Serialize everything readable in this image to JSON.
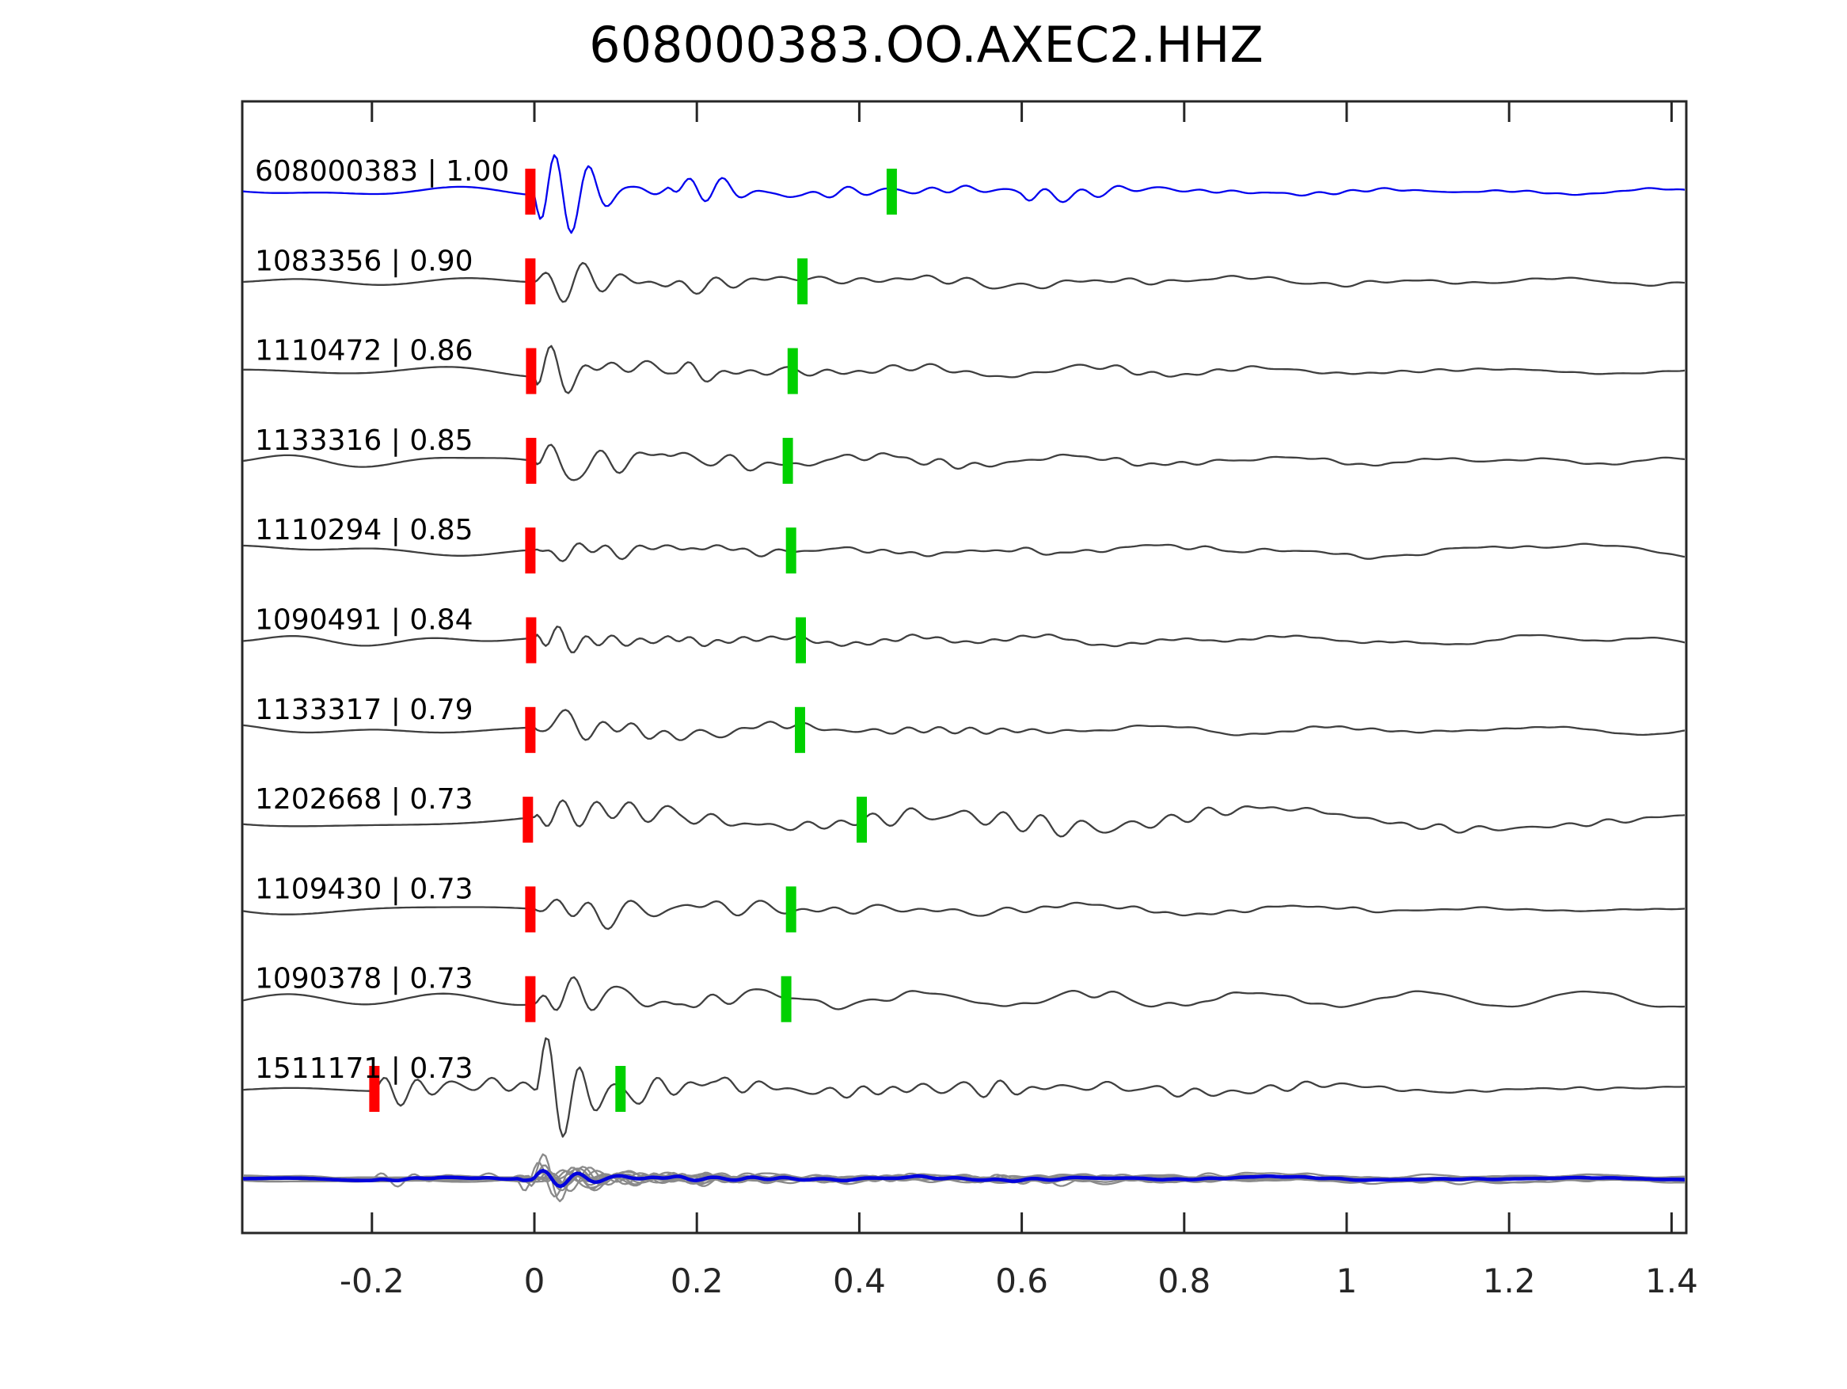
{
  "title": "608000383.OO.AXEC2.HHZ",
  "colors": {
    "background": "#ffffff",
    "template_trace": "#0202ee",
    "detection_trace": "#3f3f3f",
    "stack_member_gray": "#8a8a8a",
    "stack_blue": "#0202dd",
    "pick_red": "#ff0000",
    "pick_green": "#00d000",
    "axis": "#262626",
    "text": "#000000"
  },
  "axis": {
    "xmin": -0.3606,
    "xmax": 1.4176,
    "ticks": [
      {
        "v": -0.2,
        "label": "-0.2"
      },
      {
        "v": 0,
        "label": "0"
      },
      {
        "v": 0.2,
        "label": "0.2"
      },
      {
        "v": 0.4,
        "label": "0.4"
      },
      {
        "v": 0.6,
        "label": "0.6"
      },
      {
        "v": 0.8,
        "label": "0.8"
      },
      {
        "v": 1,
        "label": "1"
      },
      {
        "v": 1.2,
        "label": "1.2"
      },
      {
        "v": 1.4,
        "label": "1.4"
      }
    ]
  },
  "chart_data": {
    "type": "line",
    "title": "608000383.OO.AXEC2.HHZ",
    "xlabel": "",
    "ylabel": "",
    "x_units": "seconds relative to alignment (pick at 0)",
    "xlim": [
      -0.3606,
      1.4176
    ],
    "xticks": [
      -0.2,
      0,
      0.2,
      0.4,
      0.6,
      0.8,
      1,
      1.2,
      1.4
    ],
    "legend": "none",
    "grid": false,
    "description": "Waveform similarity plot: template event 608000383 (blue, top) and 10 detected events (dark gray), each labelled 'event_id | correlation'. Red bars mark the aligned pick near t=0 (event 1511171 picked at -0.20); green bars mark a secondary pick. Bottom row overlays all traces (gray) with the stacked trace in blue.",
    "traces": [
      {
        "id": "608000383",
        "correlation": "1.00",
        "label": "608000383 | 1.00",
        "role": "template",
        "red_pick": -0.005,
        "green_pick": 0.44,
        "noise": 2.2,
        "seed": 11,
        "bursts": [
          {
            "t0": 0,
            "amp": 125,
            "tau": 0.07
          },
          {
            "t0": 0.165,
            "amp": 50,
            "tau": 0.09,
            "attack": 0.025
          },
          {
            "t0": 0.32,
            "amp": 14,
            "tau": 0.5,
            "attack": 0.06
          },
          {
            "t0": 0.6,
            "amp": 16,
            "tau": 0.05,
            "attack": 0.012
          }
        ]
      },
      {
        "id": "1083356",
        "correlation": "0.90",
        "label": "1083356 | 0.90",
        "role": "detection",
        "red_pick": -0.005,
        "green_pick": 0.33,
        "noise": 3,
        "seed": 22,
        "bursts": [
          {
            "t0": 0,
            "amp": 118,
            "tau": 0.075
          },
          {
            "t0": 0.16,
            "amp": 46,
            "tau": 0.1,
            "attack": 0.03
          },
          {
            "t0": 0.3,
            "amp": 15,
            "tau": 0.5,
            "attack": 0.06
          }
        ]
      },
      {
        "id": "1110472",
        "correlation": "0.86",
        "label": "1110472 | 0.86",
        "role": "detection",
        "red_pick": -0.004,
        "green_pick": 0.318,
        "noise": 3,
        "seed": 33,
        "bursts": [
          {
            "t0": 0,
            "amp": 112,
            "tau": 0.07
          },
          {
            "t0": 0.17,
            "amp": 42,
            "tau": 0.09,
            "attack": 0.03
          },
          {
            "t0": 0.3,
            "amp": 13,
            "tau": 0.45,
            "attack": 0.06
          }
        ]
      },
      {
        "id": "1133316",
        "correlation": "0.85",
        "label": "1133316 | 0.85",
        "role": "detection",
        "red_pick": -0.004,
        "green_pick": 0.312,
        "noise": 3.5,
        "seed": 44,
        "bursts": [
          {
            "t0": 0,
            "amp": 105,
            "tau": 0.065
          },
          {
            "t0": 0.16,
            "amp": 40,
            "tau": 0.08,
            "attack": 0.025
          },
          {
            "t0": 0.3,
            "amp": 13,
            "tau": 0.5,
            "attack": 0.06
          }
        ]
      },
      {
        "id": "1110294",
        "correlation": "0.85",
        "label": "1110294 | 0.85",
        "role": "detection",
        "red_pick": -0.005,
        "green_pick": 0.316,
        "noise": 3.5,
        "seed": 55,
        "bursts": [
          {
            "t0": 0,
            "amp": 112,
            "tau": 0.075
          },
          {
            "t0": 0.17,
            "amp": 45,
            "tau": 0.09,
            "attack": 0.03
          },
          {
            "t0": 0.3,
            "amp": 14,
            "tau": 0.5,
            "attack": 0.06
          }
        ]
      },
      {
        "id": "1090491",
        "correlation": "0.84",
        "label": "1090491 | 0.84",
        "role": "detection",
        "red_pick": -0.004,
        "green_pick": 0.328,
        "noise": 3,
        "seed": 66,
        "bursts": [
          {
            "t0": 0,
            "amp": 108,
            "tau": 0.07
          },
          {
            "t0": 0.16,
            "amp": 40,
            "tau": 0.09,
            "attack": 0.03
          },
          {
            "t0": 0.3,
            "amp": 13,
            "tau": 0.45,
            "attack": 0.06
          }
        ]
      },
      {
        "id": "1133317",
        "correlation": "0.79",
        "label": "1133317 | 0.79",
        "role": "detection",
        "red_pick": -0.005,
        "green_pick": 0.327,
        "noise": 3,
        "seed": 77,
        "bursts": [
          {
            "t0": 0,
            "amp": 105,
            "tau": 0.07
          },
          {
            "t0": 0.17,
            "amp": 40,
            "tau": 0.09,
            "attack": 0.03
          },
          {
            "t0": 0.3,
            "amp": 12,
            "tau": 0.45,
            "attack": 0.06
          }
        ]
      },
      {
        "id": "1202668",
        "correlation": "0.73",
        "label": "1202668 | 0.73",
        "role": "detection",
        "red_pick": -0.008,
        "green_pick": 0.403,
        "noise": 8,
        "seed": 88,
        "bursts": [
          {
            "t0": 0,
            "amp": 95,
            "tau": 0.11
          },
          {
            "t0": 0.18,
            "amp": 42,
            "tau": 0.12,
            "attack": 0.03
          },
          {
            "t0": 0.3,
            "amp": 26,
            "tau": 0.6,
            "attack": 0.06
          }
        ]
      },
      {
        "id": "1109430",
        "correlation": "0.73",
        "label": "1109430 | 0.73",
        "role": "detection",
        "red_pick": -0.005,
        "green_pick": 0.316,
        "noise": 3,
        "seed": 99,
        "bursts": [
          {
            "t0": 0,
            "amp": 112,
            "tau": 0.075
          },
          {
            "t0": 0.16,
            "amp": 44,
            "tau": 0.09,
            "attack": 0.03
          },
          {
            "t0": 0.3,
            "amp": 13,
            "tau": 0.5,
            "attack": 0.06
          }
        ]
      },
      {
        "id": "1090378",
        "correlation": "0.73",
        "label": "1090378 | 0.73",
        "role": "detection",
        "red_pick": -0.005,
        "green_pick": 0.31,
        "noise": 4.5,
        "seed": 110,
        "bursts": [
          {
            "t0": 0,
            "amp": 108,
            "tau": 0.075
          },
          {
            "t0": 0.17,
            "amp": 42,
            "tau": 0.09,
            "attack": 0.03
          },
          {
            "t0": 0.3,
            "amp": 15,
            "tau": 0.5,
            "attack": 0.06
          }
        ]
      },
      {
        "id": "1511171",
        "correlation": "0.73",
        "label": "1511171 | 0.73",
        "role": "detection",
        "red_pick": -0.197,
        "green_pick": 0.106,
        "noise": 3,
        "seed": 121,
        "bursts": [
          {
            "t0": -0.2,
            "amp": 48,
            "tau": 0.28,
            "attack": 0.02
          },
          {
            "t0": 0,
            "amp": 150,
            "tau": 0.1
          },
          {
            "t0": 0.22,
            "amp": 42,
            "tau": 0.35,
            "attack": 0.04
          },
          {
            "t0": 0.55,
            "amp": 20,
            "tau": 0.3,
            "attack": 0.05
          }
        ]
      }
    ],
    "stack_row": {
      "description": "All 11 traces overlaid in gray with mean stack in blue",
      "member_scale": 0.55,
      "has_picks": false
    }
  }
}
